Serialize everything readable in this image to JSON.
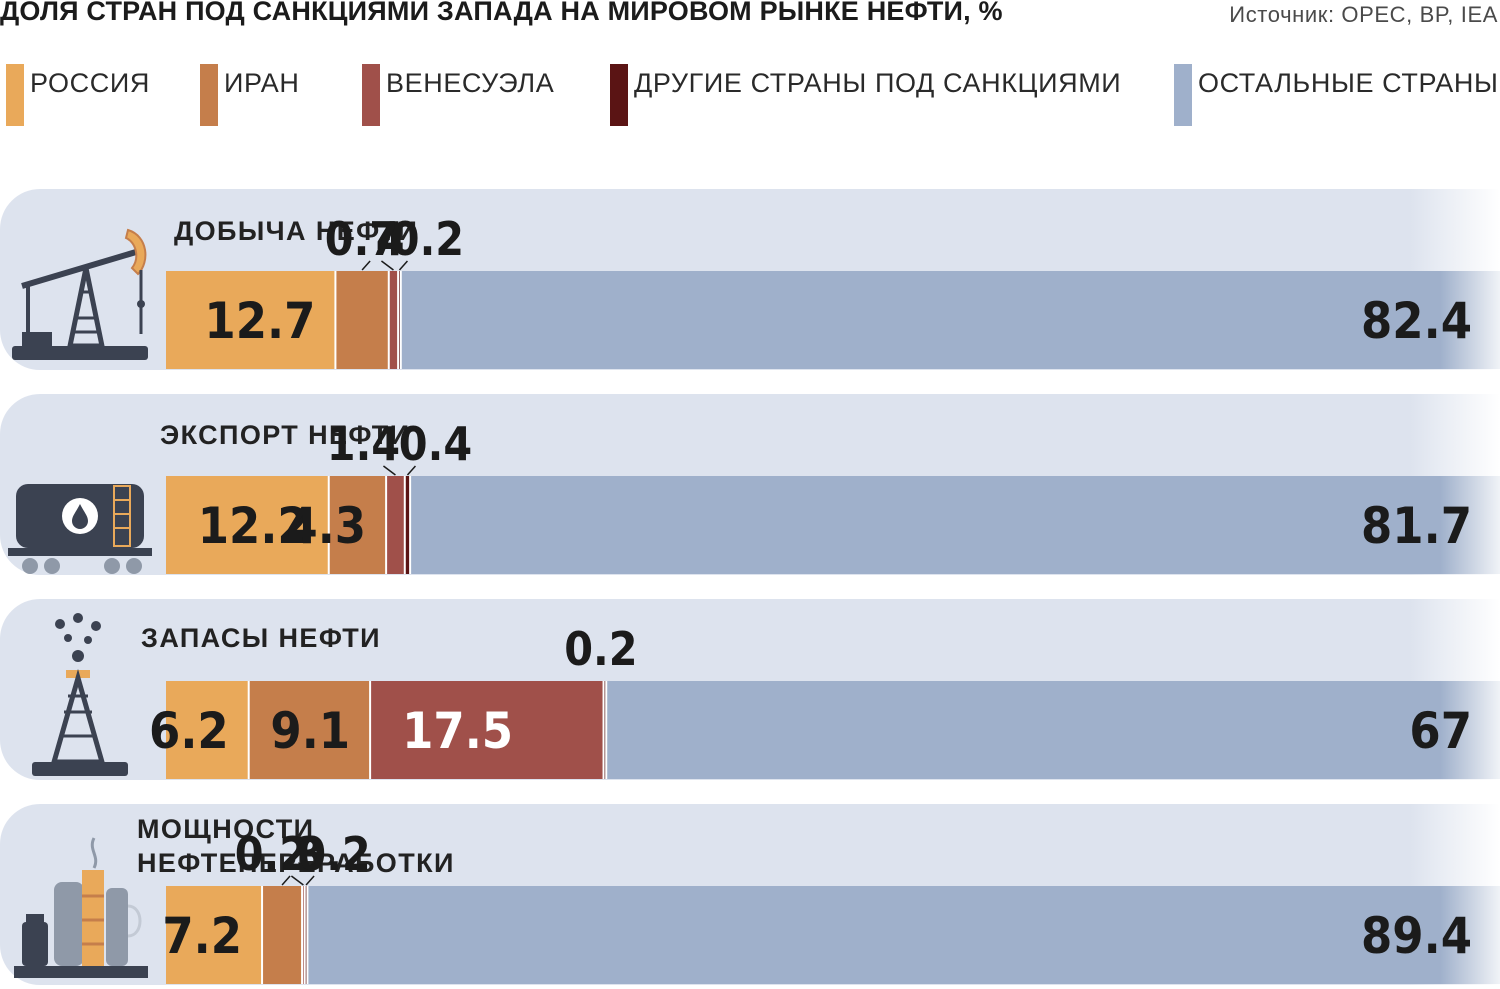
{
  "title": "ДОЛЯ СТРАН ПОД САНКЦИЯМИ ЗАПАДА НА МИРОВОМ РЫНКЕ НЕФТИ, %",
  "source": "Источник: OPEC, BP, IEA",
  "legend": [
    {
      "label": "РОССИЯ",
      "color": "#e9a95a"
    },
    {
      "label": "ИРАН",
      "color": "#c57e4b"
    },
    {
      "label": "ВЕНЕСУЭЛА",
      "color": "#a0504a"
    },
    {
      "label": "ДРУГИЕ СТРАНЫ ПОД САНКЦИЯМИ",
      "color": "#5a1414"
    },
    {
      "label": "ОСТАЛЬНЫЕ СТРАНЫ",
      "color": "#9fb0cb"
    }
  ],
  "icons": [
    "pumpjack-icon",
    "oil-tank-car-icon",
    "oil-derrick-icon",
    "refinery-icon"
  ],
  "chart_data": {
    "type": "bar",
    "stacked": true,
    "orientation": "horizontal",
    "unit": "%",
    "categories": [
      "ДОБЫЧА НЕФТИ",
      "ЭКСПОРТ НЕФТИ",
      "ЗАПАСЫ НЕФТИ",
      "МОЩНОСТИ НЕФТЕПЕРЕРАБОТКИ"
    ],
    "series": [
      {
        "name": "РОССИЯ",
        "values": [
          12.7,
          12.2,
          6.2,
          7.2
        ]
      },
      {
        "name": "ИРАН",
        "values": [
          4,
          4.3,
          9.1,
          3
        ]
      },
      {
        "name": "ВЕНЕСУЭЛА",
        "values": [
          0.7,
          1.4,
          17.5,
          0.2
        ]
      },
      {
        "name": "ДРУГИЕ СТРАНЫ ПОД САНКЦИЯМИ",
        "values": [
          0.2,
          0.4,
          0.2,
          0.2
        ]
      },
      {
        "name": "ОСТАЛЬНЫЕ СТРАНЫ",
        "values": [
          82.4,
          81.7,
          67,
          89.4
        ]
      }
    ]
  }
}
